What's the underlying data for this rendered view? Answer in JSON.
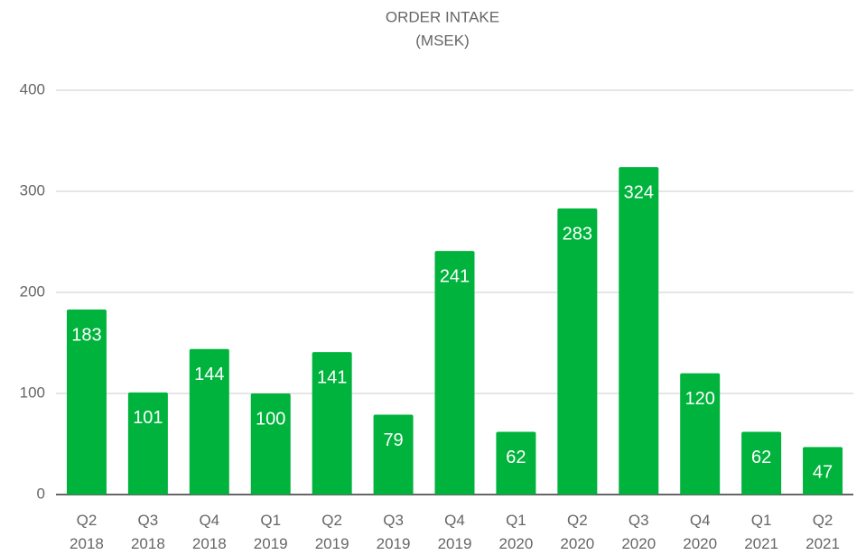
{
  "chart_data": {
    "type": "bar",
    "title": "ORDER INTAKE",
    "subtitle": "(MSEK)",
    "categories": [
      "Q2 2018",
      "Q3 2018",
      "Q4 2018",
      "Q1 2019",
      "Q2 2019",
      "Q3 2019",
      "Q4 2019",
      "Q1 2020",
      "Q2 2020",
      "Q3 2020",
      "Q4 2020",
      "Q1 2021",
      "Q2 2021"
    ],
    "values": [
      183,
      101,
      144,
      100,
      141,
      79,
      241,
      62,
      283,
      324,
      120,
      62,
      47
    ],
    "color": "#00b33c",
    "ylim": [
      0,
      400
    ],
    "yticks": [
      0,
      100,
      200,
      300,
      400
    ],
    "grid": true
  }
}
